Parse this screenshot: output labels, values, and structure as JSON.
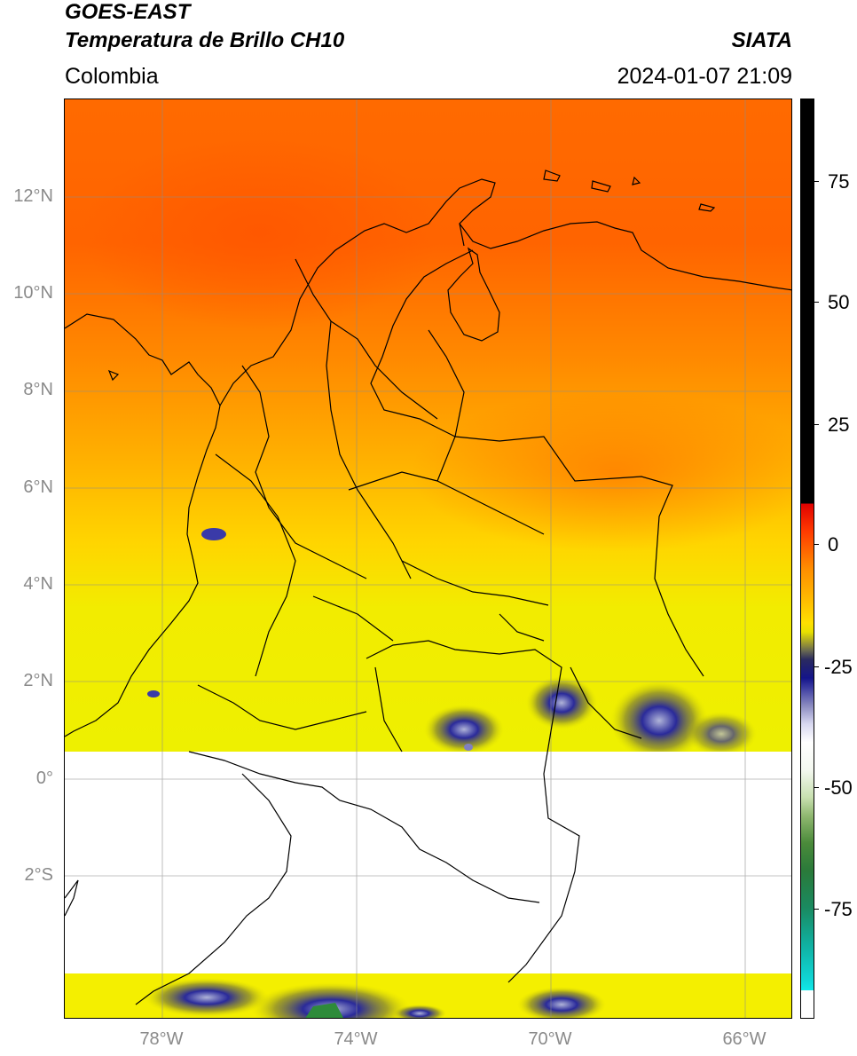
{
  "header": {
    "satellite": "GOES-EAST",
    "product": "Temperatura de Brillo CH10",
    "region": "Colombia",
    "agency": "SIATA",
    "datetime": "2024-01-07 21:09"
  },
  "map": {
    "lat_labels": [
      "12°N",
      "10°N",
      "8°N",
      "6°N",
      "4°N",
      "2°N",
      "0°",
      "2°S"
    ],
    "lon_labels": [
      "78°W",
      "74°W",
      "70°W",
      "66°W"
    ],
    "extent": {
      "lon_min": -80,
      "lon_max": -65,
      "lat_min": -5,
      "lat_max": 14
    },
    "missing_data_band_lat": [
      -4,
      0.6
    ],
    "colors": {
      "warm_orange": "#ff6a00",
      "orange": "#ff8c00",
      "yellow": "#ffd500",
      "bright_yellow": "#f6f200",
      "navy": "#1a1a8c",
      "green": "#2e8b3a"
    }
  },
  "colorbar": {
    "tick_labels": [
      "75",
      "50",
      "25",
      "0",
      "-25",
      "-50",
      "-75"
    ],
    "tick_values": [
      75,
      50,
      25,
      0,
      -25,
      -50,
      -75
    ],
    "range": [
      -93,
      90
    ]
  }
}
